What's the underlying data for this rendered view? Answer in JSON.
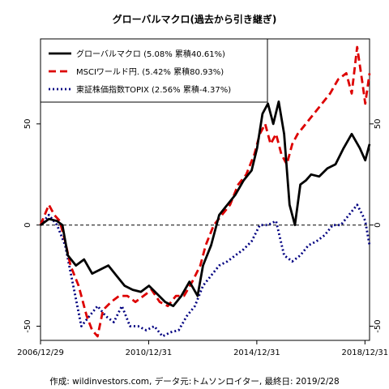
{
  "chart_data": {
    "type": "line",
    "title": "グローバルマクロ(過去から引き継ぎ)",
    "footer": "作成: wildinvestors.com, データ元:トムソンロイター, 最終日: 2019/2/28",
    "x_tick_labels": [
      "2006/12/29",
      "2010/12/31",
      "2014/12/31",
      "2018/12/31"
    ],
    "x_tick_dates": [
      2006.99,
      2010.99,
      2014.99,
      2018.99
    ],
    "xlim": [
      2006.99,
      2019.16
    ],
    "y_ticks": [
      -50,
      0,
      50
    ],
    "ylim": [
      -57,
      92
    ],
    "reference_line": 0,
    "grid": false,
    "legend_position": "top-left",
    "series": [
      {
        "name": "グローバルマクロ (5.08% 累積40.61%)",
        "color": "#000000",
        "style": "solid",
        "x": [
          2006.99,
          2007.3,
          2007.6,
          2007.8,
          2008.0,
          2008.3,
          2008.6,
          2008.9,
          2009.2,
          2009.5,
          2009.8,
          2010.1,
          2010.4,
          2010.7,
          2011.0,
          2011.3,
          2011.6,
          2011.9,
          2012.2,
          2012.5,
          2012.8,
          2013.0,
          2013.3,
          2013.6,
          2013.9,
          2014.2,
          2014.5,
          2014.8,
          2015.0,
          2015.2,
          2015.4,
          2015.6,
          2015.8,
          2016.0,
          2016.2,
          2016.4,
          2016.6,
          2016.8,
          2017.0,
          2017.3,
          2017.6,
          2017.9,
          2018.2,
          2018.5,
          2018.8,
          2019.0,
          2019.16
        ],
        "values": [
          0,
          3,
          2,
          0,
          -15,
          -20,
          -17,
          -24,
          -22,
          -20,
          -25,
          -30,
          -32,
          -33,
          -30,
          -34,
          -38,
          -40,
          -35,
          -28,
          -35,
          -20,
          -10,
          5,
          10,
          15,
          22,
          27,
          38,
          55,
          60,
          50,
          61,
          45,
          10,
          0,
          20,
          22,
          25,
          24,
          28,
          30,
          38,
          45,
          38,
          32,
          40
        ]
      },
      {
        "name": "MSCIワールド円. (5.42% 累積80.93%)",
        "color": "#dd0000",
        "style": "dashed",
        "x": [
          2006.99,
          2007.3,
          2007.5,
          2007.7,
          2007.9,
          2008.1,
          2008.4,
          2008.7,
          2008.9,
          2009.1,
          2009.3,
          2009.6,
          2009.9,
          2010.2,
          2010.5,
          2010.8,
          2011.1,
          2011.4,
          2011.7,
          2012.0,
          2012.3,
          2012.6,
          2012.9,
          2013.1,
          2013.4,
          2013.7,
          2014.0,
          2014.3,
          2014.6,
          2014.9,
          2015.1,
          2015.3,
          2015.5,
          2015.7,
          2015.9,
          2016.1,
          2016.3,
          2016.5,
          2016.8,
          2017.1,
          2017.4,
          2017.7,
          2018.0,
          2018.3,
          2018.5,
          2018.7,
          2018.9,
          2019.0,
          2019.16
        ],
        "values": [
          0,
          10,
          5,
          2,
          -8,
          -20,
          -30,
          -45,
          -52,
          -55,
          -42,
          -38,
          -35,
          -35,
          -38,
          -35,
          -32,
          -38,
          -40,
          -35,
          -35,
          -28,
          -20,
          -10,
          0,
          5,
          10,
          20,
          25,
          35,
          45,
          50,
          40,
          45,
          35,
          30,
          40,
          45,
          50,
          55,
          60,
          65,
          72,
          75,
          65,
          88,
          70,
          60,
          75
        ]
      },
      {
        "name": "東証株価指数TOPIX (2.56% 累積-4.37%)",
        "color": "#000080",
        "style": "dotted",
        "x": [
          2006.99,
          2007.3,
          2007.6,
          2007.9,
          2008.2,
          2008.5,
          2008.8,
          2009.1,
          2009.4,
          2009.7,
          2010.0,
          2010.3,
          2010.6,
          2010.9,
          2011.2,
          2011.5,
          2011.8,
          2012.1,
          2012.4,
          2012.7,
          2013.0,
          2013.3,
          2013.6,
          2013.9,
          2014.2,
          2014.5,
          2014.8,
          2015.1,
          2015.4,
          2015.7,
          2016.0,
          2016.3,
          2016.6,
          2016.9,
          2017.2,
          2017.5,
          2017.8,
          2018.1,
          2018.4,
          2018.7,
          2018.9,
          2019.0,
          2019.16
        ],
        "values": [
          0,
          5,
          0,
          -10,
          -30,
          -50,
          -45,
          -40,
          -45,
          -48,
          -40,
          -50,
          -50,
          -52,
          -50,
          -55,
          -53,
          -52,
          -45,
          -40,
          -30,
          -25,
          -20,
          -18,
          -15,
          -12,
          -8,
          0,
          0,
          2,
          -15,
          -18,
          -15,
          -10,
          -8,
          -5,
          0,
          0,
          5,
          10,
          5,
          2,
          -10
        ]
      }
    ]
  }
}
